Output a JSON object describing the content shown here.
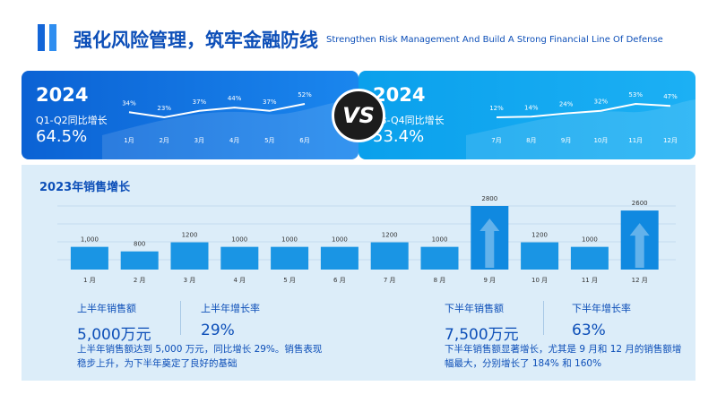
{
  "header": {
    "title_cn": "强化风险管理，筑牢金融防线",
    "title_en": "Strengthen Risk Management And Build A Strong Financial Line Of Defense"
  },
  "vs_label": "VS",
  "cards": [
    {
      "year": "2024",
      "subtitle": "Q1-Q2同比增长",
      "percent": "64.5%",
      "chart": {
        "type": "line",
        "x": [
          "1月",
          "2月",
          "3月",
          "4月",
          "5月",
          "6月"
        ],
        "labels": [
          "34%",
          "23%",
          "37%",
          "44%",
          "37%",
          "52%"
        ],
        "values": [
          34,
          23,
          37,
          44,
          37,
          52
        ]
      }
    },
    {
      "year": "2024",
      "subtitle": "Q3-Q4同比增长",
      "percent": "53.4%",
      "chart": {
        "type": "line",
        "x": [
          "7月",
          "8月",
          "9月",
          "10月",
          "11月",
          "12月"
        ],
        "labels": [
          "12%",
          "14%",
          "24%",
          "32%",
          "53%",
          "47%"
        ],
        "values": [
          12,
          14,
          24,
          32,
          53,
          47
        ]
      }
    }
  ],
  "sales": {
    "title": "2023年销售增长",
    "chart_data": {
      "type": "bar",
      "title": "2023年销售增长",
      "categories": [
        "1 月",
        "2 月",
        "3 月",
        "4 月",
        "5 月",
        "6 月",
        "7 月",
        "8 月",
        "9 月",
        "10 月",
        "11 月",
        "12 月"
      ],
      "values": [
        1000,
        800,
        1200,
        1000,
        1000,
        1000,
        1200,
        1000,
        2800,
        1200,
        1000,
        2600
      ],
      "value_labels": [
        "1,000",
        "800",
        "1200",
        "1000",
        "1000",
        "1000",
        "1200",
        "1000",
        "2800",
        "1200",
        "1000",
        "2600"
      ],
      "highlight": [
        "9 月",
        "12 月"
      ],
      "ylim": [
        0,
        2800
      ],
      "grid": true,
      "colors": {
        "bar": "#1a95e4",
        "highlight": "#1089e0"
      }
    }
  },
  "stats": {
    "h1_sales_label": "上半年销售额",
    "h1_sales_value": "5,000万元",
    "h1_growth_label": "上半年增长率",
    "h1_growth_value": "29%",
    "h1_desc": "上半年销售额达到 5,000 万元，同比增长 29%。销售表现稳步上升，为下半年奠定了良好的基础",
    "h2_sales_label": "下半年销售额",
    "h2_sales_value": "7,500万元",
    "h2_growth_label": "下半年增长率",
    "h2_growth_value": "63%",
    "h2_desc": "下半年销售额显著增长，尤其是 9 月和 12 月的销售额增幅最大，分别增长了 184% 和 160%"
  }
}
